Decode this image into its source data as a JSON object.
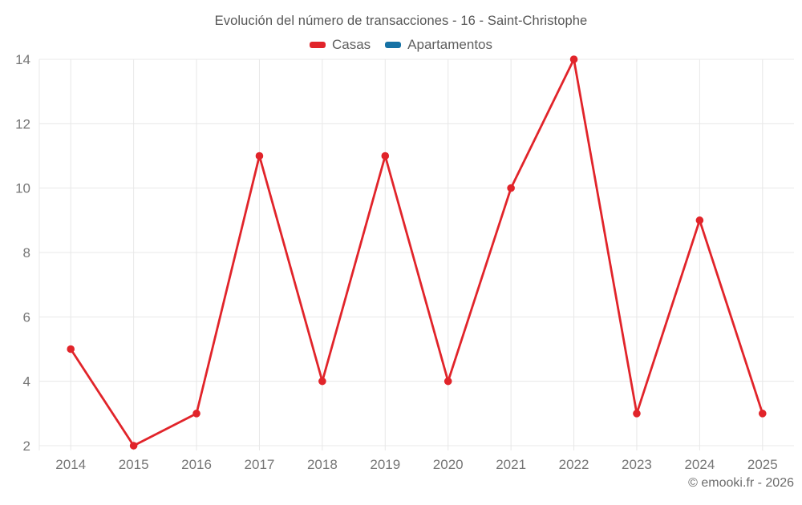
{
  "title": "Evolución del número de transacciones - 16 - Saint-Christophe",
  "legend": [
    {
      "label": "Casas",
      "color": "#e1242a"
    },
    {
      "label": "Apartamentos",
      "color": "#1672a5"
    }
  ],
  "footer": {
    "copyright": "© emooki.fr - 2026"
  },
  "chart_data": {
    "type": "line",
    "title": "Evolución del número de transacciones - 16 - Saint-Christophe",
    "x": [
      "2014",
      "2015",
      "2016",
      "2017",
      "2018",
      "2019",
      "2020",
      "2021",
      "2022",
      "2023",
      "2024",
      "2025"
    ],
    "series": [
      {
        "name": "Casas",
        "color": "#e1242a",
        "values": [
          5,
          2,
          3,
          11,
          4,
          11,
          4,
          10,
          14,
          3,
          9,
          3
        ]
      },
      {
        "name": "Apartamentos",
        "color": "#1672a5",
        "values": []
      }
    ],
    "ylim": [
      2,
      14
    ],
    "yticks": [
      2,
      4,
      6,
      8,
      10,
      12,
      14
    ],
    "xlabel": "",
    "ylabel": "",
    "grid": true,
    "legend_position": "top"
  }
}
